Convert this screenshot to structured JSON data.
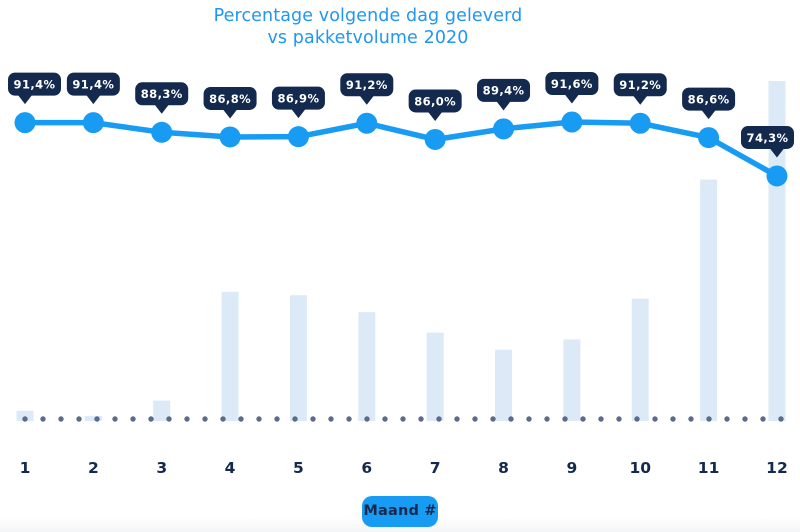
{
  "title": {
    "line1": "Percentage volgende dag geleverd",
    "line2": "vs pakketvolume 2020"
  },
  "colors": {
    "title_blue": "#2196F3",
    "accent_blue": "#189BF2",
    "navy": "#14294E",
    "bar_fill": "#DCEAF8",
    "baseline_dot": "#5B6B8C",
    "tooltip_text": "#FFFFFF",
    "background": "#FFFFFF"
  },
  "chart_data": {
    "type": "combo-line-bar",
    "title": "Percentage volgende dag geleverd vs pakketvolume 2020",
    "categories": [
      "1",
      "2",
      "3",
      "4",
      "5",
      "6",
      "7",
      "8",
      "9",
      "10",
      "11",
      "12"
    ],
    "xlabel": "Maand #",
    "legend_position": "none",
    "grid": "dotted horizontal baseline only",
    "annotations": "navy callout tooltips with percentage above every line point",
    "series": [
      {
        "name": "Percentage volgende dag geleverd",
        "type": "line",
        "unit": "%",
        "ylim": [
          70,
          95
        ],
        "values": [
          91.4,
          91.4,
          88.3,
          86.8,
          86.9,
          91.2,
          86.0,
          89.4,
          91.6,
          91.2,
          86.6,
          74.3
        ],
        "labels": [
          "91,4%",
          "91,4%",
          "88,3%",
          "86,8%",
          "86,9%",
          "91,2%",
          "86,0%",
          "89,4%",
          "91,6%",
          "91,2%",
          "86,6%",
          "74,3%"
        ]
      },
      {
        "name": "Pakketvolume 2020",
        "type": "bar",
        "unit": "relative index (month 12 = 100, unlabeled in chart)",
        "values": [
          3,
          1.5,
          6,
          38,
          37,
          32,
          26,
          21,
          24,
          36,
          71,
          100
        ]
      }
    ]
  }
}
